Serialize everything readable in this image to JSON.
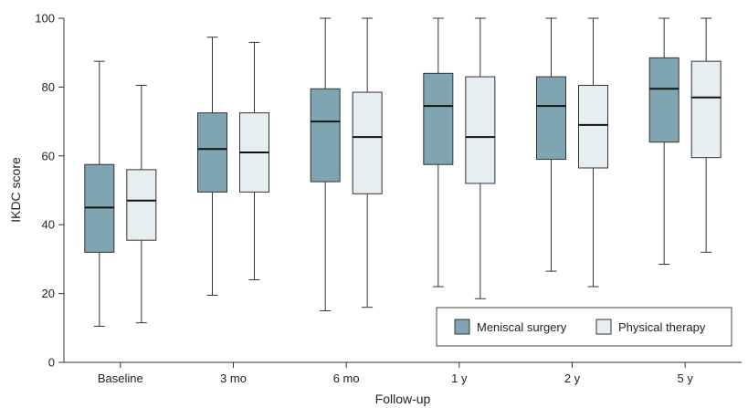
{
  "chart_data": {
    "type": "boxplot",
    "title": "",
    "xlabel": "Follow-up",
    "ylabel": "IKDC score",
    "ylim": [
      0,
      100
    ],
    "yticks": [
      0,
      20,
      40,
      60,
      80,
      100
    ],
    "grid": false,
    "legend_position": "bottom-right",
    "categories": [
      "Baseline",
      "3 mo",
      "6 mo",
      "1 y",
      "2 y",
      "5 y"
    ],
    "series": [
      {
        "name": "Meniscal surgery",
        "color": "#7fa4b2",
        "boxes": [
          {
            "min": 10.5,
            "q1": 32,
            "median": 45,
            "q3": 57.5,
            "max": 87.5
          },
          {
            "min": 19.5,
            "q1": 49.5,
            "median": 62,
            "q3": 72.5,
            "max": 94.5
          },
          {
            "min": 15,
            "q1": 52.5,
            "median": 70,
            "q3": 79.5,
            "max": 100
          },
          {
            "min": 22,
            "q1": 57.5,
            "median": 74.5,
            "q3": 84,
            "max": 100
          },
          {
            "min": 26.5,
            "q1": 59,
            "median": 74.5,
            "q3": 83,
            "max": 100
          },
          {
            "min": 28.5,
            "q1": 64,
            "median": 79.5,
            "q3": 88.5,
            "max": 100
          }
        ]
      },
      {
        "name": "Physical therapy",
        "color": "#e6eef2",
        "boxes": [
          {
            "min": 11.5,
            "q1": 35.5,
            "median": 47,
            "q3": 56,
            "max": 80.5
          },
          {
            "min": 24,
            "q1": 49.5,
            "median": 61,
            "q3": 72.5,
            "max": 93
          },
          {
            "min": 16,
            "q1": 49,
            "median": 65.5,
            "q3": 78.5,
            "max": 100
          },
          {
            "min": 18.5,
            "q1": 52,
            "median": 65.5,
            "q3": 83,
            "max": 100
          },
          {
            "min": 22,
            "q1": 56.5,
            "median": 69,
            "q3": 80.5,
            "max": 100
          },
          {
            "min": 32,
            "q1": 59.5,
            "median": 77,
            "q3": 87.5,
            "max": 100
          }
        ]
      }
    ]
  }
}
